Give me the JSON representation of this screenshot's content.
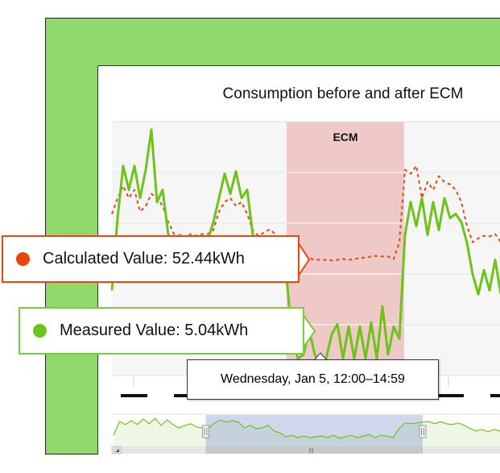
{
  "chart_data": {
    "type": "line",
    "title": "Consumption before and after ECM",
    "xlabel": "",
    "ylabel": "",
    "unit": "kWh",
    "ylim": [
      0,
      115
    ],
    "grid": true,
    "plot_band": {
      "label": "ECM",
      "from_index": 31,
      "to_index": 52,
      "color": "#efc8c8"
    },
    "series": [
      {
        "name": "Measured Value",
        "color": "#6cc417",
        "style": "solid",
        "values": [
          38.6,
          71.3,
          95.0,
          84.1,
          95.0,
          80.4,
          93.2,
          111.4,
          78.6,
          84.1,
          63.7,
          60.1,
          63.7,
          62.2,
          63.3,
          61.2,
          63.7,
          61.2,
          69.5,
          80.4,
          91.4,
          82.3,
          92.5,
          80.4,
          84.1,
          63.7,
          60.1,
          61.2,
          60.1,
          60.1,
          56.8,
          44.0,
          16.7,
          7.6,
          9.5,
          20.4,
          9.5,
          5.04,
          7.6,
          18.6,
          23.3,
          7.6,
          22.2,
          7.6,
          22.2,
          7.6,
          24.0,
          7.6,
          31.3,
          9.5,
          22.2,
          16.7,
          63.7,
          78.6,
          67.7,
          80.4,
          63.7,
          78.6,
          65.9,
          80.4,
          71.3,
          73.2,
          69.5,
          60.1,
          45.9,
          36.8,
          47.7,
          38.6,
          52.4,
          36.8
        ]
      },
      {
        "name": "Calculated Value",
        "color": "#e8450f",
        "style": "dashed",
        "values": [
          73.2,
          80.4,
          85.9,
          80.4,
          84.1,
          74.3,
          76.8,
          82.3,
          80.4,
          76.8,
          69.5,
          64.1,
          62.2,
          62.2,
          64.1,
          63.3,
          64.1,
          64.1,
          65.9,
          74.3,
          78.6,
          80.4,
          76.8,
          78.6,
          73.2,
          65.9,
          63.3,
          64.8,
          66.2,
          64.1,
          60.4,
          56.8,
          53.9,
          53.2,
          52.4,
          53.2,
          52.4,
          52.44,
          52.4,
          52.1,
          52.4,
          52.8,
          52.4,
          52.8,
          53.2,
          53.5,
          53.9,
          54.2,
          53.9,
          53.9,
          52.8,
          60.4,
          93.2,
          91.4,
          95.0,
          80.4,
          87.7,
          84.1,
          90.3,
          87.7,
          86.6,
          84.1,
          78.6,
          67.7,
          60.4,
          62.2,
          63.3,
          63.0,
          64.1,
          60.4
        ]
      }
    ],
    "hover_index": 37,
    "navigator": {
      "values": [
        41,
        91,
        80,
        94,
        80,
        100,
        83,
        103,
        77,
        97,
        80,
        68,
        77,
        83,
        71,
        68,
        68,
        86,
        97,
        89,
        94,
        89,
        68,
        77,
        65,
        68,
        77,
        56,
        50,
        35,
        41,
        32,
        38,
        32,
        35,
        38,
        32,
        41,
        30,
        35,
        41,
        32,
        38,
        44,
        32,
        41,
        38,
        32,
        65,
        86,
        83,
        86,
        89,
        91,
        83,
        91,
        83,
        80,
        86,
        77,
        65,
        56,
        62,
        53,
        62,
        56
      ],
      "selection": [
        15.5,
        52
      ]
    }
  },
  "tooltips": {
    "calculated": {
      "label": "Calculated Value: 52.44kWh",
      "color": "#e8450f"
    },
    "measured": {
      "label": "Measured Value: 5.04kWh",
      "color": "#6cc417"
    },
    "date": "Wednesday, Jan 5, 12:00–14:59"
  }
}
